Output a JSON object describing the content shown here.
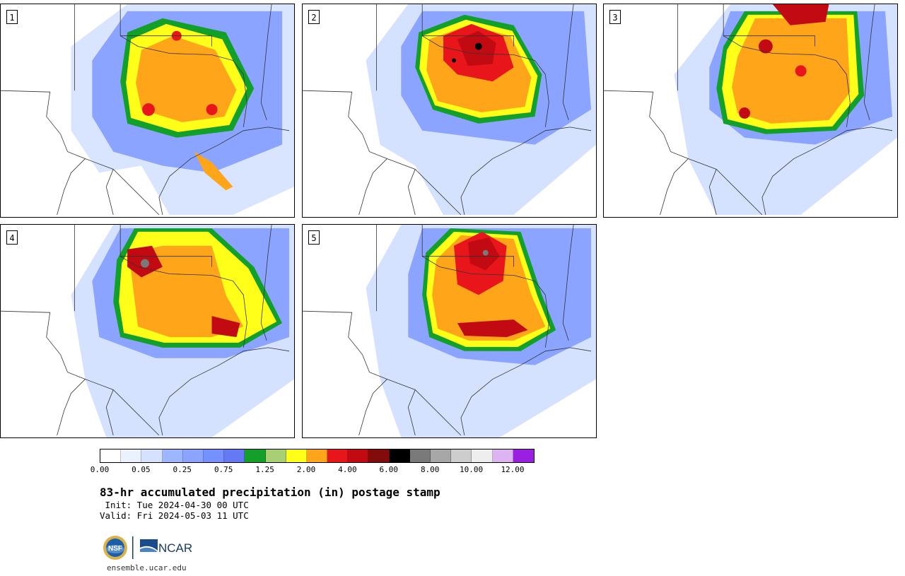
{
  "panels": [
    {
      "number": "1"
    },
    {
      "number": "2"
    },
    {
      "number": "3"
    },
    {
      "number": "4"
    },
    {
      "number": "5"
    }
  ],
  "colorbar": {
    "colors": [
      "#ffffff",
      "#eaf2ff",
      "#d5e2ff",
      "#9cb7ff",
      "#8aa4ff",
      "#7590ff",
      "#6679f4",
      "#12a02a",
      "#a9cf74",
      "#ffff1a",
      "#ffa51a",
      "#e8161a",
      "#c20a12",
      "#820b0b",
      "#000000",
      "#7a7a7a",
      "#a7a7a7",
      "#cdcdcd",
      "#eeeeee",
      "#ddb3f2",
      "#9b1fe0"
    ],
    "tick_labels": [
      "0.00",
      "0.05",
      "0.25",
      "0.75",
      "1.25",
      "2.00",
      "4.00",
      "6.00",
      "8.00",
      "10.00",
      "12.00"
    ]
  },
  "title": "83-hr accumulated precipitation (in) postage stamp",
  "init_line": " Init: Tue 2024-04-30 00 UTC",
  "valid_line": "Valid: Fri 2024-05-03 11 UTC",
  "logos": {
    "nsf": "NSF",
    "ncar": "NCAR"
  },
  "site": "ensemble.ucar.edu"
}
